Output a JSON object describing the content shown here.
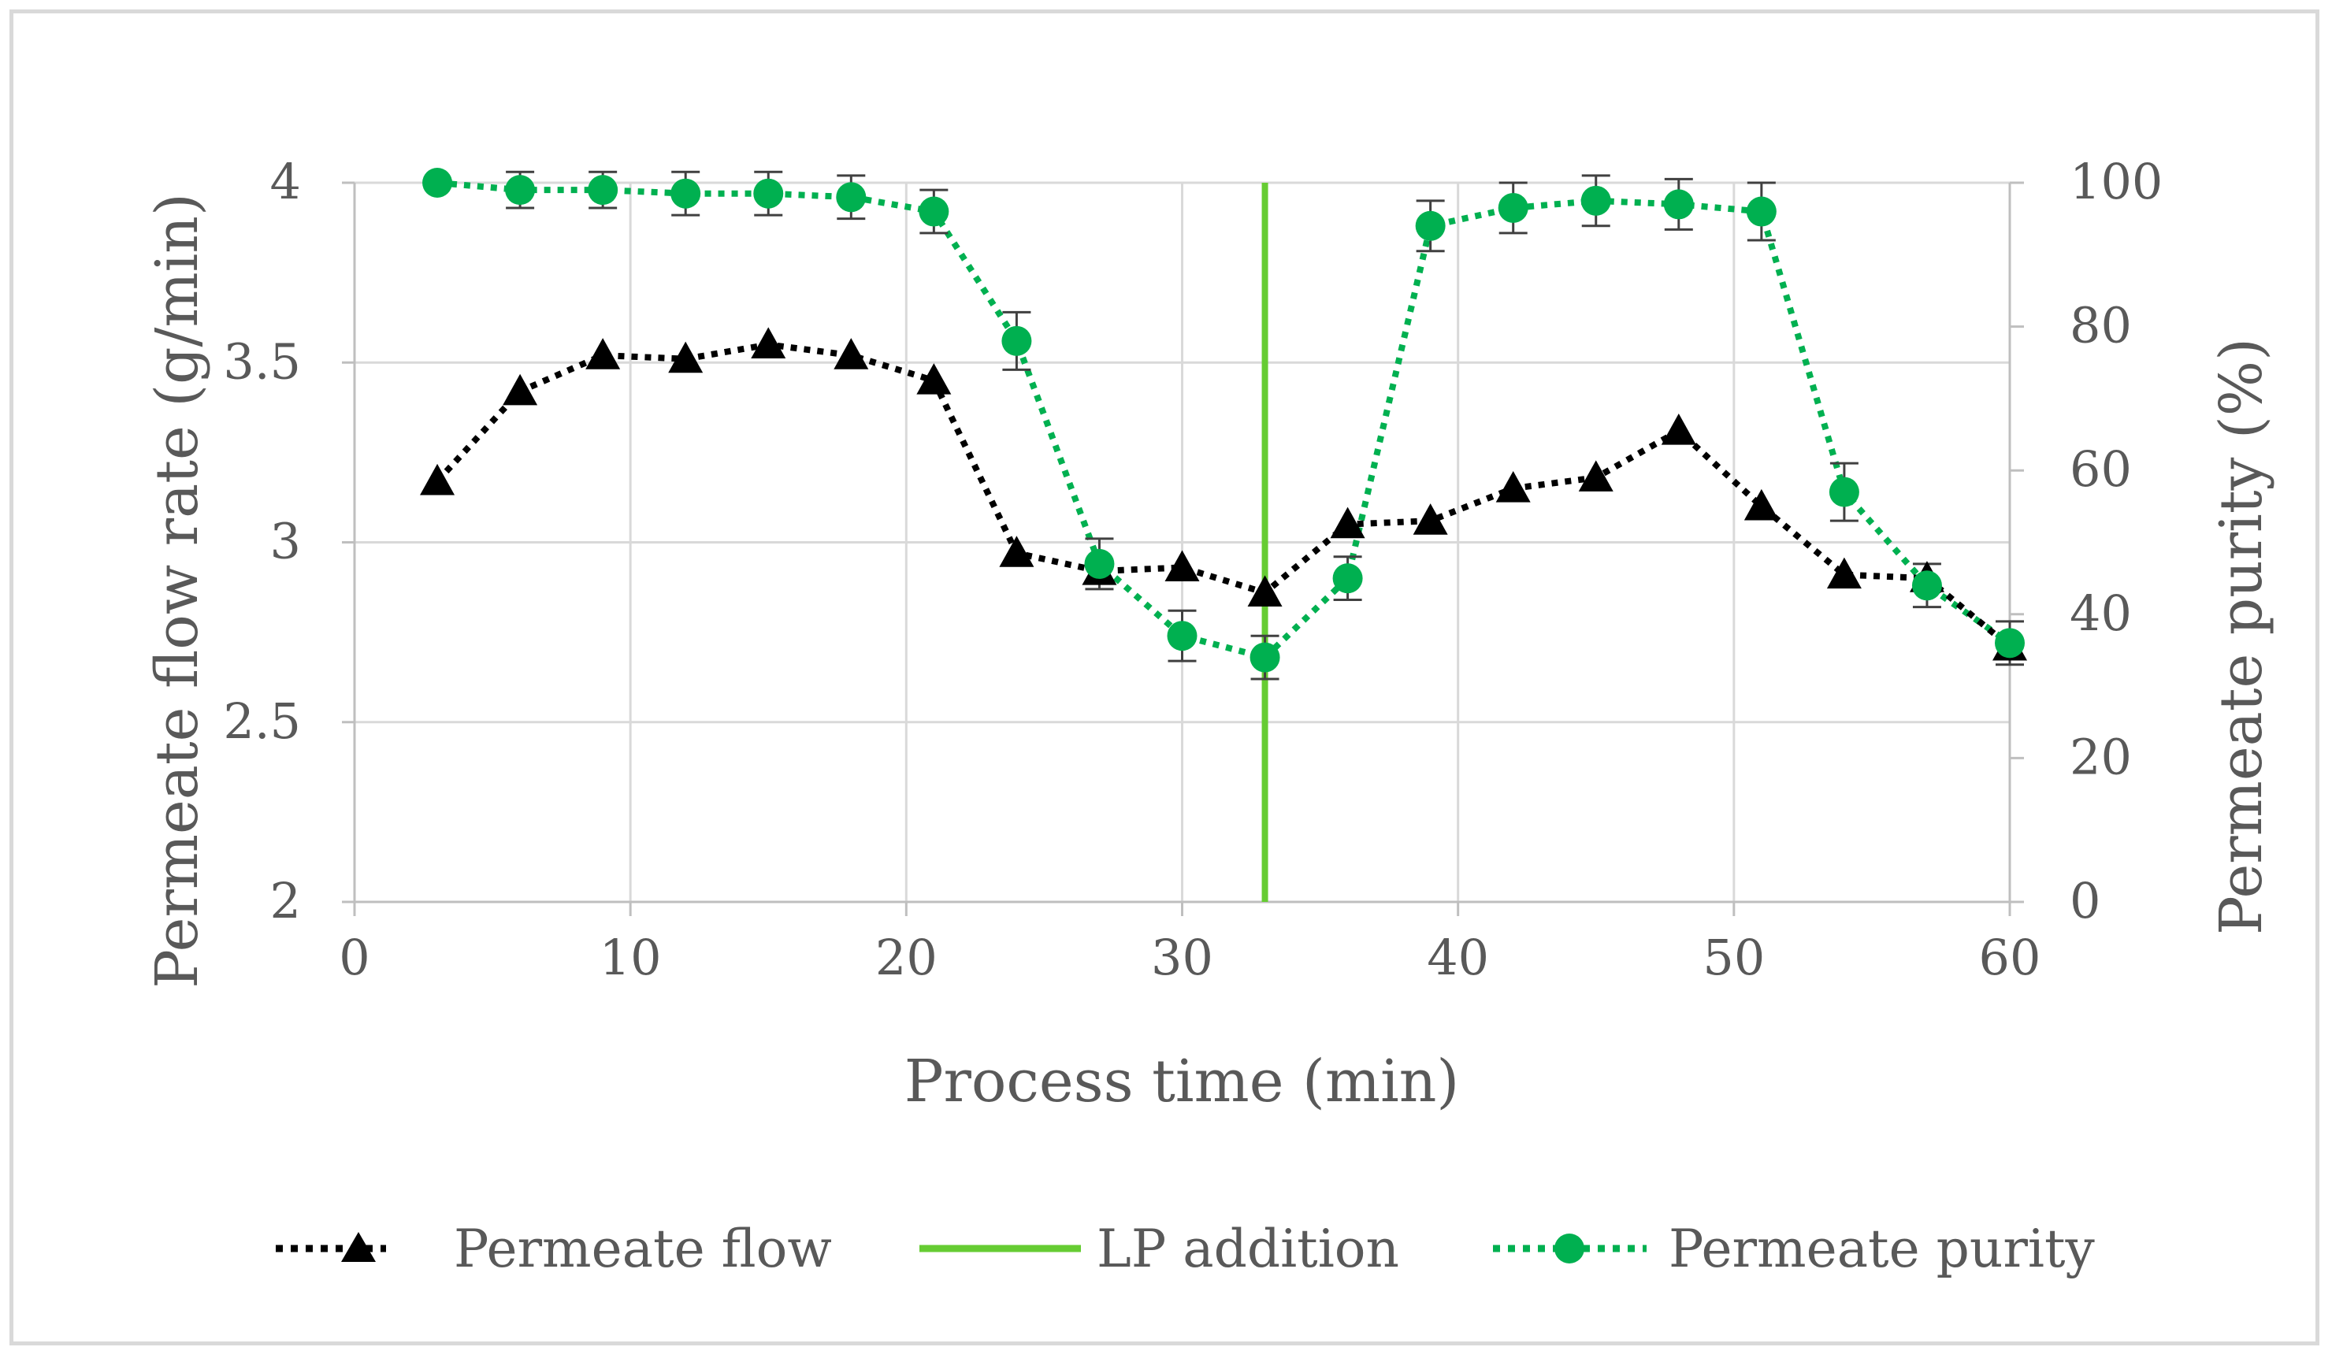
{
  "chart_data": {
    "type": "line",
    "title": "",
    "xlabel": "Process time (min)",
    "ylabel_left": "Permeate flow rate (g/min)",
    "ylabel_right": "Permeate purity (%)",
    "xlim": [
      0,
      60
    ],
    "ylim_left": [
      2,
      4
    ],
    "ylim_right": [
      0,
      100
    ],
    "x_ticks": [
      0,
      10,
      20,
      30,
      40,
      50,
      60
    ],
    "y_ticks_left": [
      "2",
      "2.5",
      "3",
      "3.5",
      "4"
    ],
    "y_ticks_right": [
      0,
      20,
      40,
      60,
      80,
      100
    ],
    "grid": true,
    "legend_position": "bottom",
    "series": [
      {
        "name": "Permeate flow",
        "axis": "left",
        "marker": "triangle",
        "style": "dotted",
        "color": "#000000",
        "x": [
          3,
          6,
          9,
          12,
          15,
          18,
          21,
          24,
          27,
          30,
          33,
          36,
          39,
          42,
          45,
          48,
          51,
          54,
          57,
          60
        ],
        "values": [
          3.17,
          3.42,
          3.52,
          3.51,
          3.55,
          3.52,
          3.45,
          2.97,
          2.92,
          2.93,
          2.86,
          3.05,
          3.06,
          3.15,
          3.18,
          3.31,
          3.1,
          2.91,
          2.9,
          2.71
        ]
      },
      {
        "name": "Permeate purity",
        "axis": "right",
        "marker": "circle",
        "style": "dotted",
        "color": "#00b050",
        "x": [
          3,
          6,
          9,
          12,
          15,
          18,
          21,
          24,
          27,
          30,
          33,
          36,
          39,
          42,
          45,
          48,
          51,
          54,
          57,
          60
        ],
        "values": [
          100,
          99,
          99,
          98.5,
          98.5,
          98,
          96,
          78,
          47,
          37,
          34,
          45,
          94,
          96.5,
          97.5,
          97,
          96,
          57,
          44,
          36
        ],
        "error": [
          0,
          2.5,
          2.5,
          3,
          3,
          3,
          3,
          4,
          3.5,
          3.5,
          3,
          3,
          3.5,
          3.5,
          3.5,
          3.5,
          4,
          4,
          3,
          3
        ]
      },
      {
        "name": "LP addition",
        "axis": "left",
        "style": "solid",
        "color": "#66cc33",
        "type": "vline",
        "x_value": 33
      }
    ]
  }
}
